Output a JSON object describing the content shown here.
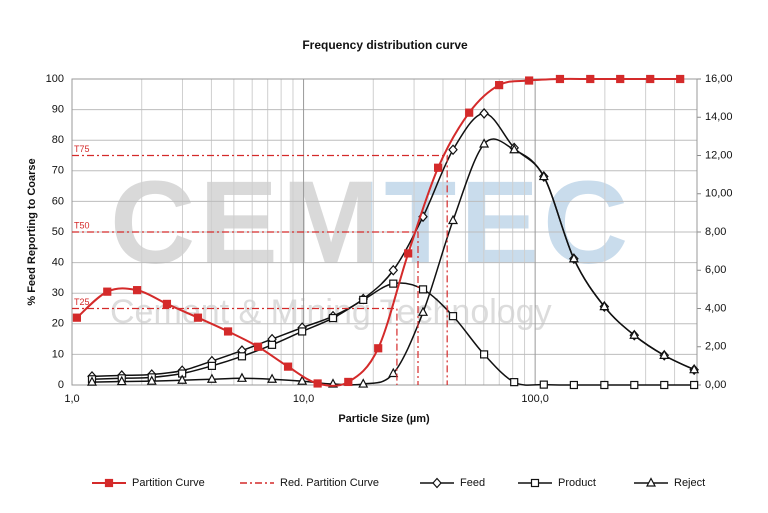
{
  "chart_data": {
    "type": "line",
    "title": "Frequency distribution curve",
    "x_label": "Particle Size (µm)",
    "y_label": "% Feed Reporting to Coarse",
    "watermark": [
      "CEMTEC",
      "Cement & Mining Technology"
    ],
    "x_scale": "log",
    "xlim": [
      1,
      500
    ],
    "xticks": [
      {
        "value": 1,
        "label": "1,0"
      },
      {
        "value": 10,
        "label": "10,0"
      },
      {
        "value": 100,
        "label": "100,0"
      }
    ],
    "ylim": [
      0,
      100
    ],
    "yticks": [
      0,
      10,
      20,
      30,
      40,
      50,
      60,
      70,
      80,
      90,
      100
    ],
    "y2lim": [
      0,
      16
    ],
    "y2ticks": [
      {
        "value": 0,
        "label": "0,00"
      },
      {
        "value": 2,
        "label": "2,00"
      },
      {
        "value": 4,
        "label": "4,00"
      },
      {
        "value": 6,
        "label": "6,00"
      },
      {
        "value": 8,
        "label": "8,00"
      },
      {
        "value": 10,
        "label": "10,00"
      },
      {
        "value": 12,
        "label": "12,00"
      },
      {
        "value": 14,
        "label": "14,00"
      },
      {
        "value": 16,
        "label": "16,00"
      }
    ],
    "grid": true,
    "legend": "bottom",
    "series": [
      {
        "name": "Partition Curve",
        "color": "#d42a2a",
        "marker": "square-filled",
        "dash": "solid",
        "x": [
          1.05,
          1.42,
          1.91,
          2.57,
          3.5,
          4.72,
          6.36,
          8.57,
          11.5,
          15.6,
          21.0,
          28.3,
          38.1,
          51.9,
          69.9,
          94.2,
          128,
          173,
          233,
          314,
          423
        ],
        "values": [
          22,
          30.5,
          31,
          26.5,
          22,
          17.5,
          12.5,
          6,
          0.5,
          1,
          12,
          43,
          71,
          89,
          98,
          99.5,
          100,
          100,
          100,
          100,
          100
        ]
      },
      {
        "name": "Red. Partition Curve",
        "color": "#d42a2a",
        "marker": "none",
        "dash": "dashdot",
        "style": "cut-guides",
        "x": [
          25.3,
          31.2,
          41.7
        ],
        "values": [
          25,
          50,
          75
        ],
        "point_labels": [
          "T25",
          "T50",
          "T75"
        ]
      },
      {
        "name": "Feed",
        "color": "#111111",
        "marker": "diamond",
        "dash": "solid",
        "axis": "y2",
        "x": [
          1.22,
          1.64,
          2.21,
          2.99,
          4.02,
          5.42,
          7.31,
          9.86,
          13.4,
          18.1,
          24.4,
          32.8,
          44.2,
          60.2,
          81.2,
          109,
          147,
          199,
          268,
          361,
          486
        ],
        "values": [
          0.45,
          0.5,
          0.55,
          0.75,
          1.25,
          1.8,
          2.4,
          3.0,
          3.6,
          4.5,
          6.0,
          8.8,
          12.3,
          14.2,
          12.4,
          10.9,
          6.6,
          4.1,
          2.6,
          1.55,
          0.8
        ]
      },
      {
        "name": "Product",
        "color": "#111111",
        "marker": "square",
        "dash": "solid",
        "axis": "y2",
        "x": [
          1.22,
          1.64,
          2.21,
          2.99,
          4.02,
          5.42,
          7.31,
          9.86,
          13.4,
          18.1,
          24.4,
          32.8,
          44.2,
          60.2,
          81.2,
          109,
          147,
          199,
          268,
          361,
          486
        ],
        "values": [
          0.3,
          0.35,
          0.4,
          0.6,
          1.0,
          1.5,
          2.1,
          2.8,
          3.5,
          4.45,
          5.3,
          5.0,
          3.6,
          1.6,
          0.15,
          0.02,
          0,
          0,
          0,
          0,
          0
        ]
      },
      {
        "name": "Reject",
        "color": "#111111",
        "marker": "triangle",
        "dash": "solid",
        "axis": "y2",
        "x": [
          1.22,
          1.64,
          2.21,
          2.99,
          4.02,
          5.42,
          7.31,
          9.86,
          13.4,
          18.1,
          24.4,
          32.8,
          44.2,
          60.2,
          81.2,
          109,
          147,
          199,
          268,
          361,
          486
        ],
        "values": [
          0.15,
          0.18,
          0.2,
          0.25,
          0.3,
          0.35,
          0.3,
          0.2,
          0.05,
          0.05,
          0.6,
          3.8,
          8.6,
          12.6,
          12.3,
          10.9,
          6.6,
          4.1,
          2.6,
          1.55,
          0.8
        ]
      }
    ]
  }
}
